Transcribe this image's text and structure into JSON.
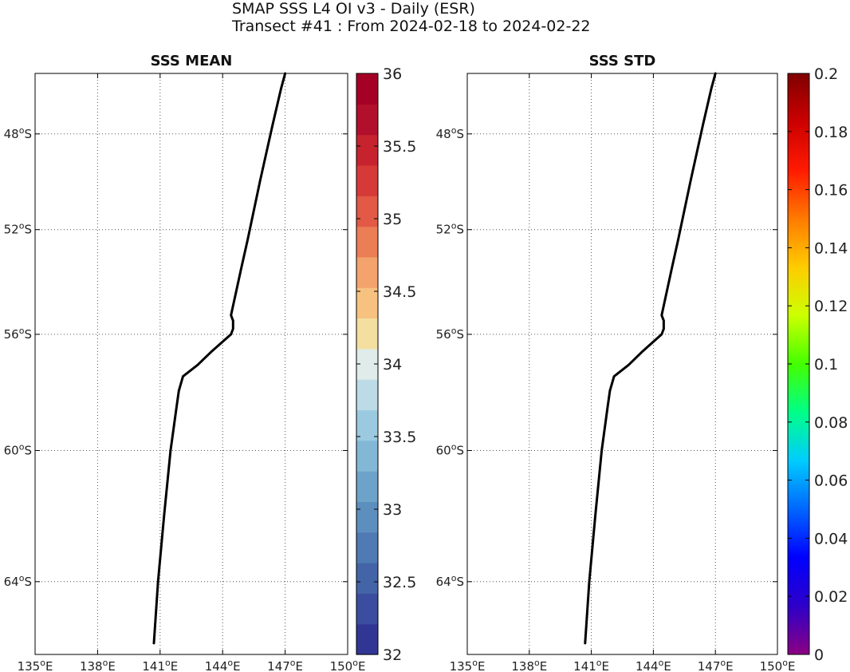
{
  "title": {
    "line1": "SMAP SSS L4 OI v3 - Daily (ESR)",
    "line2": "Transect #41 : From 2024-02-18 to 2024-02-22"
  },
  "panels": [
    {
      "title": "SSS MEAN"
    },
    {
      "title": "SSS STD"
    }
  ],
  "map": {
    "projection": "mercator",
    "lon_range": [
      135,
      150
    ],
    "lat_range": [
      -66.0,
      -45.3
    ],
    "lon_ticks": [
      135,
      138,
      141,
      144,
      147,
      150
    ],
    "lon_tick_labels": [
      "135°E",
      "138°E",
      "141°E",
      "144°E",
      "147°E",
      "150°E"
    ],
    "lat_ticks": [
      -48,
      -52,
      -56,
      -60,
      -64
    ],
    "lat_tick_labels": [
      "48°S",
      "52°S",
      "56°S",
      "60°S",
      "64°S"
    ],
    "grid": true,
    "track_color": "#000000"
  },
  "track": [
    [
      140.7,
      -65.7
    ],
    [
      140.9,
      -64.0
    ],
    [
      141.2,
      -62.0
    ],
    [
      141.5,
      -60.0
    ],
    [
      141.8,
      -58.5
    ],
    [
      141.9,
      -58.0
    ],
    [
      142.1,
      -57.5
    ],
    [
      142.8,
      -57.1
    ],
    [
      143.5,
      -56.6
    ],
    [
      144.4,
      -56.0
    ],
    [
      144.5,
      -55.8
    ],
    [
      144.5,
      -55.5
    ],
    [
      144.4,
      -55.3
    ],
    [
      144.9,
      -53.5
    ],
    [
      145.2,
      -52.4
    ],
    [
      145.8,
      -50.0
    ],
    [
      146.4,
      -47.6
    ],
    [
      146.8,
      -46.0
    ],
    [
      147.0,
      -45.3
    ]
  ],
  "colorbars": [
    {
      "name": "SSS MEAN",
      "min": 32,
      "max": 36,
      "tick_values": [
        32,
        32.5,
        33,
        33.5,
        34,
        34.5,
        35,
        35.5,
        36
      ],
      "tick_labels": [
        "32",
        "32.5",
        "33",
        "33.5",
        "34",
        "34.5",
        "35",
        "35.5",
        "36"
      ],
      "colors": [
        "#313695",
        "#3a4d9f",
        "#4464a8",
        "#4f7ab3",
        "#5d8fbe",
        "#6ea3c9",
        "#82b8d6",
        "#9bcae0",
        "#bcdbe6",
        "#dfecea",
        "#f4dfa0",
        "#f7c280",
        "#f3a36b",
        "#ec7e56",
        "#e25945",
        "#d53a38",
        "#c7232f",
        "#b20f2d",
        "#a50026"
      ]
    },
    {
      "name": "SSS STD",
      "min": 0,
      "max": 0.2,
      "tick_values": [
        0,
        0.02,
        0.04,
        0.06,
        0.08,
        0.1,
        0.12,
        0.14,
        0.16,
        0.18,
        0.2
      ],
      "tick_labels": [
        "0",
        "0.02",
        "0.04",
        "0.06",
        "0.08",
        "0.1",
        "0.12",
        "0.14",
        "0.16",
        "0.18",
        "0.2"
      ],
      "colors": [
        "#8b0083",
        "#2e00c8",
        "#0000ff",
        "#0066ff",
        "#00ccff",
        "#00ff88",
        "#44ff00",
        "#ccff00",
        "#ffcc00",
        "#ff7a00",
        "#ff1a00",
        "#cc0000",
        "#800000"
      ]
    }
  ]
}
